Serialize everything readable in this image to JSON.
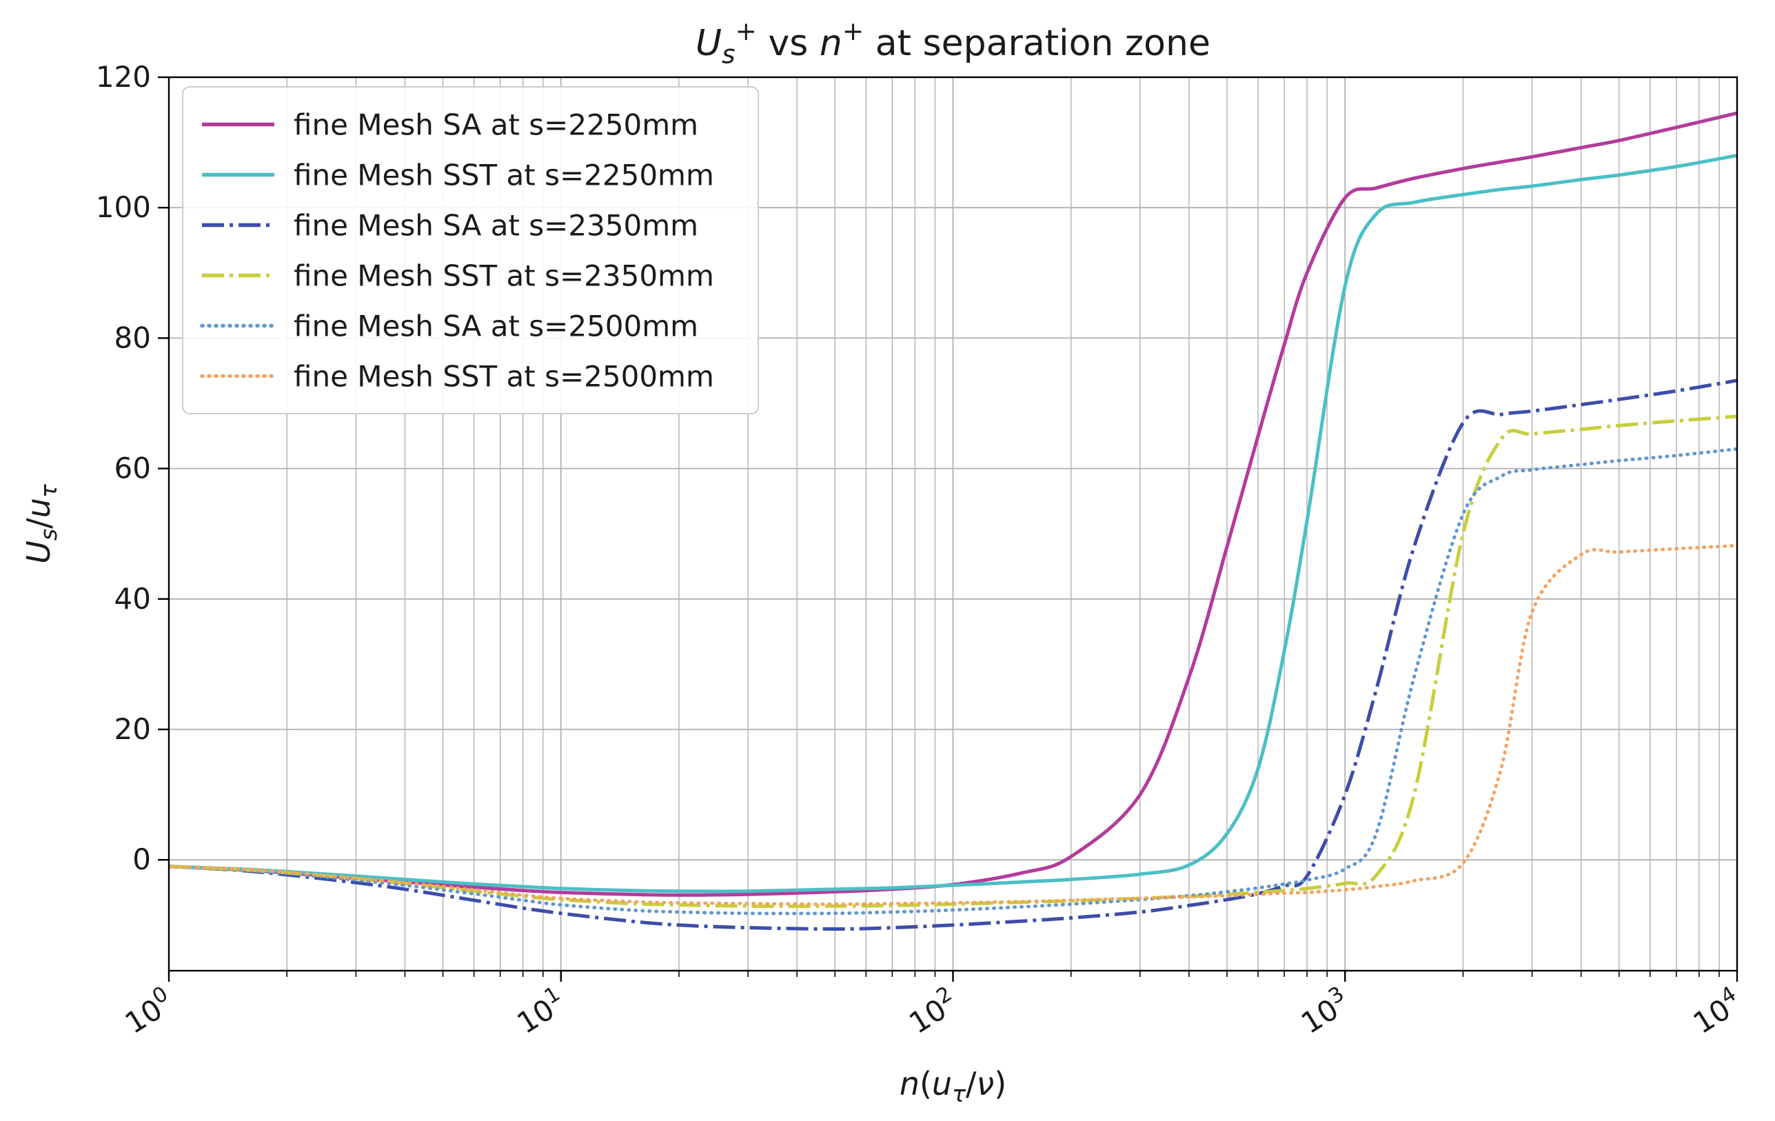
{
  "chart_data": {
    "type": "line",
    "title_segments": [
      {
        "t": "U",
        "i": 1
      },
      {
        "t": "s",
        "i": 1,
        "v": "sub"
      },
      {
        "t": "+",
        "v": "sup"
      },
      {
        "t": " vs "
      },
      {
        "t": "n",
        "i": 1
      },
      {
        "t": "+",
        "v": "sup"
      },
      {
        "t": " at separation zone"
      }
    ],
    "title_plain": "Us+ vs n+ at separation zone",
    "xlabel_segments": [
      {
        "t": "n",
        "i": 1
      },
      {
        "t": "("
      },
      {
        "t": "u",
        "i": 1
      },
      {
        "t": "τ",
        "i": 1,
        "v": "sub"
      },
      {
        "t": "/"
      },
      {
        "t": "ν",
        "i": 1
      },
      {
        "t": ")"
      }
    ],
    "xlabel_plain": "n(uτ/ν)",
    "ylabel_segments": [
      {
        "t": "U",
        "i": 1
      },
      {
        "t": "s",
        "i": 1,
        "v": "sub"
      },
      {
        "t": "/"
      },
      {
        "t": "u",
        "i": 1
      },
      {
        "t": "τ",
        "i": 1,
        "v": "sub"
      }
    ],
    "ylabel_plain": "Us/uτ",
    "x_scale": "log",
    "xlim": [
      1,
      10000
    ],
    "ylim": [
      -17,
      120
    ],
    "x_ticks": [
      {
        "base": "10",
        "exp": "0",
        "value": 1
      },
      {
        "base": "10",
        "exp": "1",
        "value": 10
      },
      {
        "base": "10",
        "exp": "2",
        "value": 100
      },
      {
        "base": "10",
        "exp": "3",
        "value": 1000
      },
      {
        "base": "10",
        "exp": "4",
        "value": 10000
      }
    ],
    "y_ticks": [
      0,
      20,
      40,
      60,
      80,
      100,
      120
    ],
    "grid": true,
    "grid_color": "#b0b0b0",
    "legend_position": "upper left",
    "x": [
      1,
      1.5,
      2,
      3,
      4,
      6,
      8,
      10,
      15,
      20,
      30,
      50,
      70,
      100,
      150,
      200,
      300,
      400,
      500,
      600,
      700,
      800,
      1000,
      1200,
      1500,
      2000,
      2500,
      3000,
      4000,
      5000,
      7000,
      10000
    ],
    "series": [
      {
        "name": "fine Mesh SA at s=2250mm",
        "color": "#b23c9c",
        "dash": "solid",
        "y": [
          -1.0,
          -1.5,
          -2.0,
          -2.8,
          -3.4,
          -4.2,
          -4.7,
          -5.0,
          -5.3,
          -5.4,
          -5.3,
          -4.9,
          -4.5,
          -3.8,
          -2.0,
          0.5,
          10,
          28,
          48,
          65,
          79,
          90,
          101.5,
          103,
          104.5,
          106,
          107,
          107.8,
          109.2,
          110.3,
          112.3,
          114.5
        ]
      },
      {
        "name": "fine Mesh SST at s=2250mm",
        "color": "#4bbfc6",
        "dash": "solid",
        "y": [
          -1.0,
          -1.4,
          -1.8,
          -2.5,
          -3.0,
          -3.7,
          -4.1,
          -4.4,
          -4.7,
          -4.8,
          -4.8,
          -4.5,
          -4.3,
          -3.9,
          -3.4,
          -3.0,
          -2.2,
          -0.8,
          4,
          14,
          32,
          52,
          88,
          99,
          100.8,
          102,
          102.8,
          103.3,
          104.3,
          105,
          106.3,
          108
        ]
      },
      {
        "name": "fine Mesh SA at s=2350mm",
        "color": "#3d4da8",
        "dash": "dashdot",
        "y": [
          -1.0,
          -1.6,
          -2.3,
          -3.5,
          -4.5,
          -6.2,
          -7.4,
          -8.2,
          -9.4,
          -10.0,
          -10.4,
          -10.6,
          -10.4,
          -10.0,
          -9.4,
          -8.9,
          -8.0,
          -7.0,
          -6.1,
          -5.2,
          -4.0,
          -2.5,
          10,
          26,
          48,
          67,
          68.3,
          68.8,
          69.8,
          70.6,
          71.9,
          73.5
        ]
      },
      {
        "name": "fine Mesh SST at s=2350mm",
        "color": "#c8ce3c",
        "dash": "dashdot",
        "y": [
          -1.0,
          -1.5,
          -2.0,
          -2.9,
          -3.6,
          -4.8,
          -5.6,
          -6.1,
          -6.7,
          -6.9,
          -7.1,
          -7.1,
          -7.0,
          -6.8,
          -6.5,
          -6.3,
          -5.9,
          -5.6,
          -5.3,
          -5.0,
          -4.7,
          -4.4,
          -3.6,
          -2.4,
          10,
          50,
          64.5,
          65.3,
          66.0,
          66.6,
          67.3,
          68.0
        ]
      },
      {
        "name": "fine Mesh SA at s=2500mm",
        "color": "#6096d0",
        "dash": "dotted",
        "y": [
          -1.0,
          -1.5,
          -2.1,
          -3.1,
          -3.9,
          -5.2,
          -6.2,
          -6.9,
          -7.7,
          -8.0,
          -8.2,
          -8.2,
          -8.0,
          -7.7,
          -7.2,
          -6.8,
          -6.1,
          -5.5,
          -4.9,
          -4.3,
          -3.7,
          -3.1,
          -1.4,
          4,
          28,
          53,
          58.8,
          59.8,
          60.6,
          61.2,
          62.0,
          63.0
        ]
      },
      {
        "name": "fine Mesh SST at s=2500mm",
        "color": "#f6a15e",
        "dash": "dotted",
        "y": [
          -1.0,
          -1.4,
          -1.9,
          -2.8,
          -3.5,
          -4.6,
          -5.4,
          -5.9,
          -6.4,
          -6.6,
          -6.7,
          -6.8,
          -6.7,
          -6.6,
          -6.4,
          -6.2,
          -5.9,
          -5.7,
          -5.5,
          -5.3,
          -5.1,
          -5.0,
          -4.6,
          -4.1,
          -3.2,
          -0.5,
          14,
          38,
          46.8,
          47.2,
          47.7,
          48.2
        ]
      }
    ],
    "style": {
      "text_color": "#1a1a1a",
      "spine_color": "#000000",
      "legend_border": "#cccccc",
      "legend_bg": "#ffffff",
      "line_width": 5
    }
  }
}
